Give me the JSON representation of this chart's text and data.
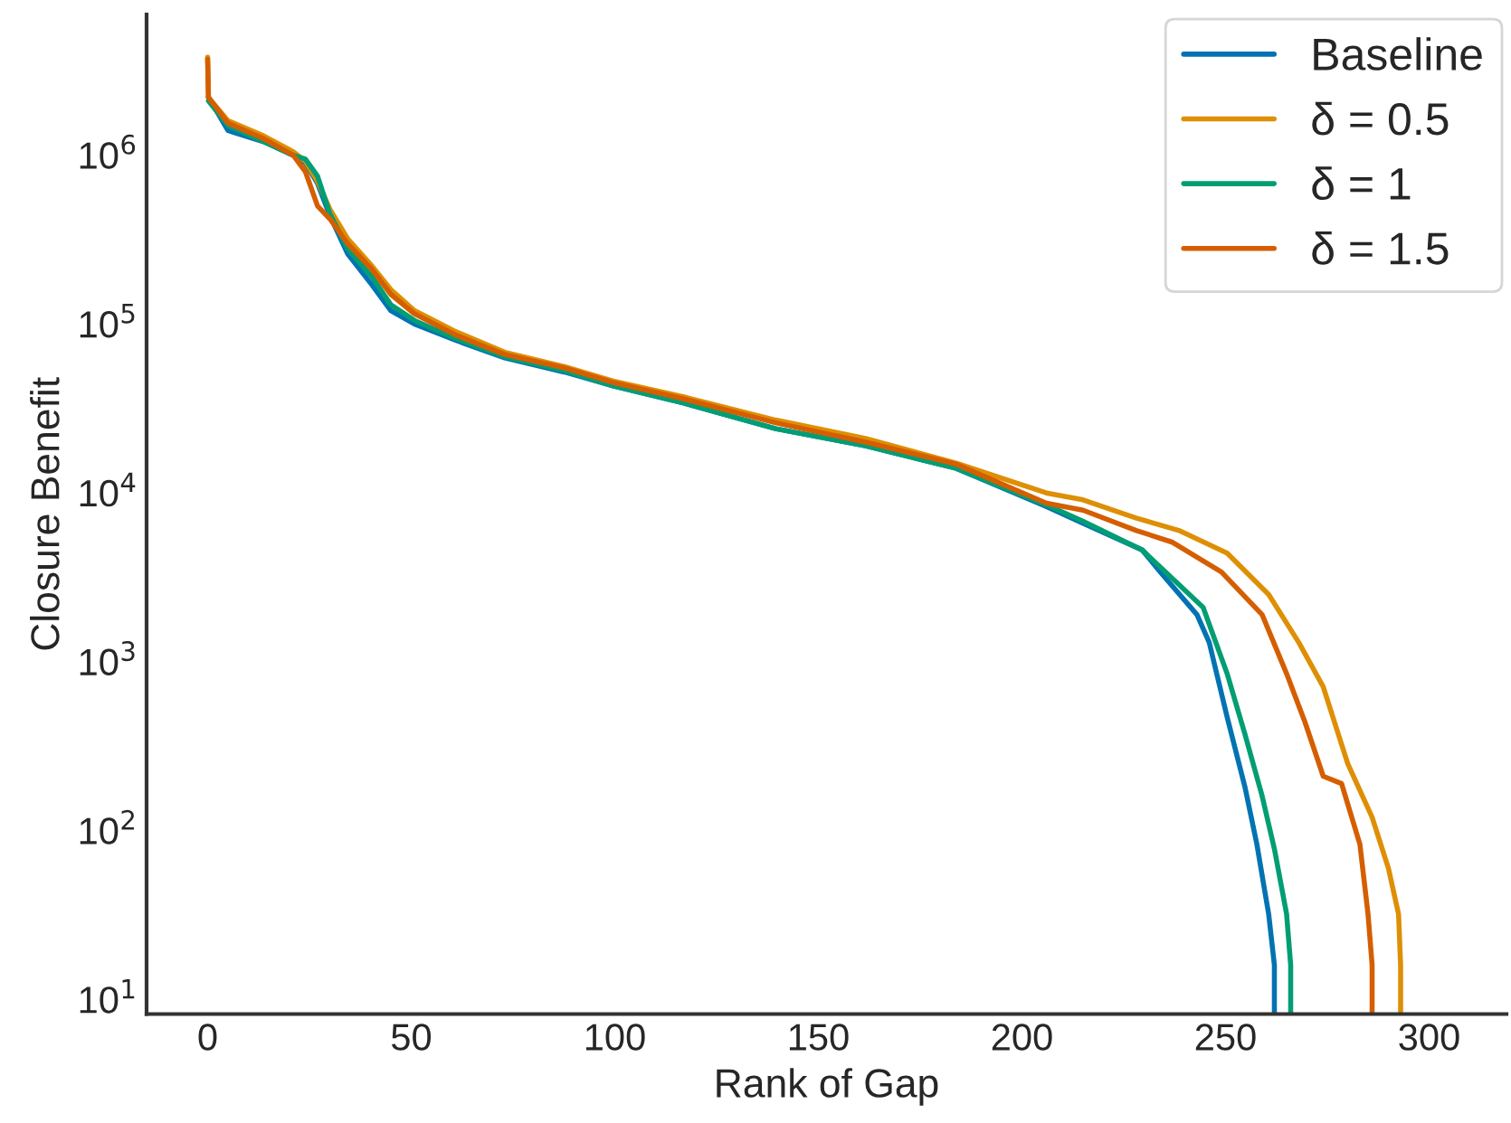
{
  "chart_data": {
    "type": "line",
    "xlabel": "Rank of Gap",
    "ylabel": "Closure Benefit",
    "log": "y",
    "grid": false,
    "legend": "top right",
    "marker": "none",
    "line_style": "solid",
    "xlim": [
      -15,
      319
    ],
    "xticks": [
      0,
      50,
      100,
      150,
      200,
      250,
      300
    ],
    "ylim": [
      8.2,
      6800000
    ],
    "yticks": [
      {
        "value": 10,
        "label": "10$^{1}$"
      },
      {
        "value": 100,
        "label": "10$^{2}$"
      },
      {
        "value": 1000,
        "label": "10$^{3}$"
      },
      {
        "value": 10000,
        "label": "10$^{4}$"
      },
      {
        "value": 100000,
        "label": "10$^{5}$"
      },
      {
        "value": 1000000,
        "label": "10$^{6}$"
      }
    ],
    "series": [
      {
        "name": "Baseline",
        "color": "#0173b2",
        "x": [
          0.2,
          5,
          13.8,
          21,
          24,
          27,
          30,
          34.4,
          40.4,
          45,
          50.8,
          61,
          73,
          87.6,
          99.6,
          117,
          139.5,
          161.6,
          183.8,
          206,
          215,
          229.5,
          234,
          243,
          246,
          250.4,
          254.8,
          257.7,
          260.6,
          262,
          262
        ],
        "values": [
          2200000,
          1400000,
          1200000,
          1000000,
          900000,
          680000,
          440000,
          260000,
          170000,
          120000,
          100000,
          80000,
          63000,
          52000,
          43000,
          34000,
          24000,
          19000,
          14000,
          8300,
          6600,
          4600,
          3400,
          1900,
          1300,
          470,
          180,
          83,
          32,
          16,
          8.2
        ]
      },
      {
        "name": "δ = 0.5",
        "color": "#de8f05",
        "x": [
          0,
          0.2,
          5,
          13.8,
          21,
          24,
          27,
          30,
          34.4,
          40.4,
          45,
          50.8,
          61,
          73,
          87.6,
          99.6,
          117,
          139.5,
          161.6,
          183.8,
          206,
          215,
          228,
          238.5,
          250.4,
          260.6,
          268,
          274,
          280,
          286,
          290,
          292.5,
          293,
          293
        ],
        "values": [
          3800000,
          2200000,
          1600000,
          1300000,
          1050000,
          920000,
          700000,
          480000,
          320000,
          220000,
          160000,
          120000,
          90000,
          68000,
          56000,
          46000,
          37000,
          27000,
          21000,
          15000,
          10000,
          9100,
          7100,
          6000,
          4400,
          2500,
          1300,
          710,
          250,
          120,
          60,
          32,
          16,
          8.2
        ]
      },
      {
        "name": "δ = 1",
        "color": "#029e73",
        "x": [
          0.2,
          5,
          13.8,
          21,
          24,
          27,
          30,
          34.4,
          40.4,
          45,
          50.8,
          61,
          73,
          87.6,
          99.6,
          117,
          139.5,
          161.6,
          183.8,
          206,
          215,
          229.5,
          244.5,
          250.4,
          254.8,
          259,
          262,
          265,
          266,
          266
        ],
        "values": [
          2100000,
          1500000,
          1200000,
          1000000,
          950000,
          750000,
          450000,
          280000,
          190000,
          130000,
          105000,
          82000,
          64000,
          53000,
          43000,
          34000,
          24000,
          19000,
          14000,
          8500,
          6800,
          4600,
          2100,
          850,
          370,
          160,
          78,
          32,
          16,
          8.2
        ]
      },
      {
        "name": "δ = 1.5",
        "color": "#d55e00",
        "x": [
          0,
          0.2,
          5,
          13.8,
          21,
          24,
          27,
          30,
          34.4,
          40.4,
          45,
          50.8,
          61,
          73,
          87.6,
          99.6,
          117,
          139.5,
          161.6,
          183.8,
          206,
          215,
          228,
          237,
          249,
          259,
          265,
          269.5,
          274,
          278.5,
          283,
          285,
          286,
          286
        ],
        "values": [
          3700000,
          2200000,
          1550000,
          1250000,
          1000000,
          800000,
          500000,
          420000,
          300000,
          210000,
          150000,
          115000,
          86000,
          66000,
          55000,
          45000,
          36000,
          26000,
          20000,
          14800,
          8700,
          7900,
          6000,
          5100,
          3400,
          1900,
          850,
          440,
          210,
          190,
          83,
          32,
          16,
          8.2
        ]
      }
    ]
  }
}
